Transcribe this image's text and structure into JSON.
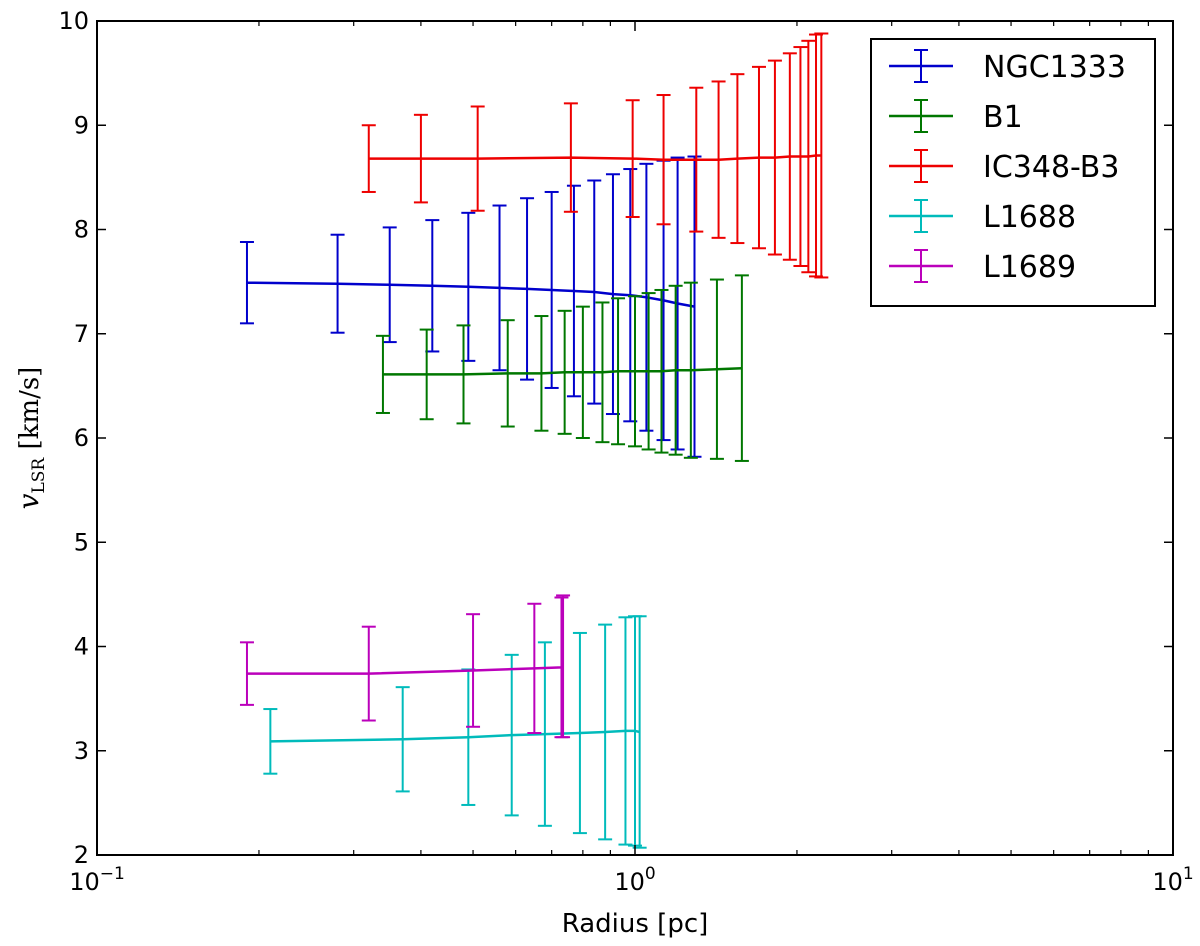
{
  "chart_data": {
    "type": "line",
    "title": "",
    "xlabel": "Radius [pc]",
    "ylabel": {
      "main": "v",
      "sub": "LSR",
      "unit": " [km/s]"
    },
    "xscale": "log",
    "xlim": [
      0.1,
      10
    ],
    "ylim": [
      2,
      10
    ],
    "xticks": [
      {
        "value": 0.1,
        "base": "10",
        "exp": "−1"
      },
      {
        "value": 1,
        "base": "10",
        "exp": "0"
      },
      {
        "value": 10,
        "base": "10",
        "exp": "1"
      }
    ],
    "yticks": [
      "2",
      "3",
      "4",
      "5",
      "6",
      "7",
      "8",
      "9",
      "10"
    ],
    "legend_position": "top-right",
    "grid": false,
    "series": [
      {
        "name": "NGC1333",
        "color": "#0000cc",
        "points": [
          {
            "x": 0.19,
            "y": 7.49,
            "err": 0.39
          },
          {
            "x": 0.28,
            "y": 7.48,
            "err": 0.47
          },
          {
            "x": 0.35,
            "y": 7.47,
            "err": 0.55
          },
          {
            "x": 0.42,
            "y": 7.46,
            "err": 0.63
          },
          {
            "x": 0.49,
            "y": 7.45,
            "err": 0.71
          },
          {
            "x": 0.56,
            "y": 7.44,
            "err": 0.79
          },
          {
            "x": 0.63,
            "y": 7.43,
            "err": 0.87
          },
          {
            "x": 0.7,
            "y": 7.42,
            "err": 0.94
          },
          {
            "x": 0.77,
            "y": 7.41,
            "err": 1.01
          },
          {
            "x": 0.84,
            "y": 7.4,
            "err": 1.07
          },
          {
            "x": 0.91,
            "y": 7.38,
            "err": 1.15
          },
          {
            "x": 0.98,
            "y": 7.37,
            "err": 1.21
          },
          {
            "x": 1.05,
            "y": 7.35,
            "err": 1.28
          },
          {
            "x": 1.13,
            "y": 7.32,
            "err": 1.34
          },
          {
            "x": 1.2,
            "y": 7.29,
            "err": 1.4
          },
          {
            "x": 1.29,
            "y": 7.26,
            "err": 1.44
          }
        ]
      },
      {
        "name": "B1",
        "color": "#007700",
        "points": [
          {
            "x": 0.34,
            "y": 6.61,
            "err": 0.37
          },
          {
            "x": 0.41,
            "y": 6.61,
            "err": 0.43
          },
          {
            "x": 0.48,
            "y": 6.61,
            "err": 0.47
          },
          {
            "x": 0.58,
            "y": 6.62,
            "err": 0.51
          },
          {
            "x": 0.67,
            "y": 6.62,
            "err": 0.55
          },
          {
            "x": 0.74,
            "y": 6.63,
            "err": 0.59
          },
          {
            "x": 0.8,
            "y": 6.63,
            "err": 0.63
          },
          {
            "x": 0.87,
            "y": 6.63,
            "err": 0.67
          },
          {
            "x": 0.93,
            "y": 6.64,
            "err": 0.7
          },
          {
            "x": 1.0,
            "y": 6.64,
            "err": 0.72
          },
          {
            "x": 1.06,
            "y": 6.64,
            "err": 0.75
          },
          {
            "x": 1.12,
            "y": 6.64,
            "err": 0.78
          },
          {
            "x": 1.19,
            "y": 6.65,
            "err": 0.81
          },
          {
            "x": 1.27,
            "y": 6.65,
            "err": 0.84
          },
          {
            "x": 1.42,
            "y": 6.66,
            "err": 0.86
          },
          {
            "x": 1.58,
            "y": 6.67,
            "err": 0.89
          }
        ]
      },
      {
        "name": "IC348-B3",
        "color": "#ee0000",
        "points": [
          {
            "x": 0.32,
            "y": 8.68,
            "err": 0.32
          },
          {
            "x": 0.4,
            "y": 8.68,
            "err": 0.42
          },
          {
            "x": 0.51,
            "y": 8.68,
            "err": 0.5
          },
          {
            "x": 0.76,
            "y": 8.69,
            "err": 0.52
          },
          {
            "x": 0.99,
            "y": 8.68,
            "err": 0.56
          },
          {
            "x": 1.13,
            "y": 8.67,
            "err": 0.62
          },
          {
            "x": 1.3,
            "y": 8.67,
            "err": 0.69
          },
          {
            "x": 1.43,
            "y": 8.67,
            "err": 0.75
          },
          {
            "x": 1.55,
            "y": 8.68,
            "err": 0.81
          },
          {
            "x": 1.7,
            "y": 8.69,
            "err": 0.87
          },
          {
            "x": 1.82,
            "y": 8.69,
            "err": 0.93
          },
          {
            "x": 1.94,
            "y": 8.7,
            "err": 0.99
          },
          {
            "x": 2.03,
            "y": 8.7,
            "err": 1.05
          },
          {
            "x": 2.1,
            "y": 8.7,
            "err": 1.11
          },
          {
            "x": 2.17,
            "y": 8.71,
            "err": 1.16
          },
          {
            "x": 2.22,
            "y": 8.71,
            "err": 1.17
          }
        ]
      },
      {
        "name": "L1688",
        "color": "#00bbbb",
        "points": [
          {
            "x": 0.21,
            "y": 3.09,
            "err": 0.31
          },
          {
            "x": 0.37,
            "y": 3.11,
            "err": 0.5
          },
          {
            "x": 0.49,
            "y": 3.13,
            "err": 0.65
          },
          {
            "x": 0.59,
            "y": 3.15,
            "err": 0.77
          },
          {
            "x": 0.68,
            "y": 3.16,
            "err": 0.88
          },
          {
            "x": 0.79,
            "y": 3.17,
            "err": 0.96
          },
          {
            "x": 0.88,
            "y": 3.18,
            "err": 1.03
          },
          {
            "x": 0.96,
            "y": 3.19,
            "err": 1.09
          },
          {
            "x": 1.0,
            "y": 3.19,
            "err": 1.1
          },
          {
            "x": 1.02,
            "y": 3.18,
            "err": 1.11
          }
        ]
      },
      {
        "name": "L1689",
        "color": "#bb00bb",
        "points": [
          {
            "x": 0.19,
            "y": 3.74,
            "err": 0.3
          },
          {
            "x": 0.32,
            "y": 3.74,
            "err": 0.45
          },
          {
            "x": 0.5,
            "y": 3.77,
            "err": 0.54
          },
          {
            "x": 0.65,
            "y": 3.79,
            "err": 0.62
          },
          {
            "x": 0.73,
            "y": 3.8,
            "err": 0.67
          },
          {
            "x": 0.735,
            "y": 3.81,
            "err": 0.68
          }
        ]
      }
    ]
  }
}
